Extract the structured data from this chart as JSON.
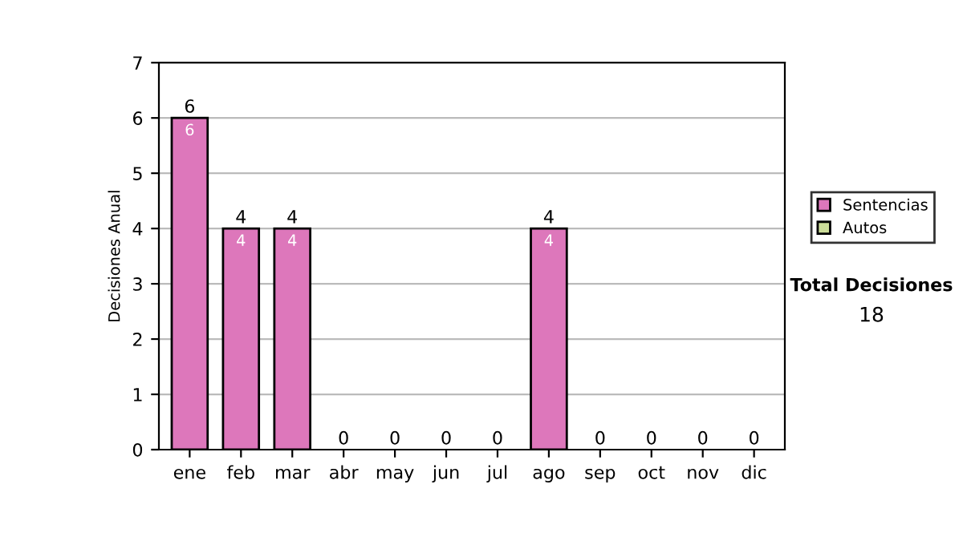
{
  "chart_data": {
    "type": "bar",
    "stacked": true,
    "ylabel": "Decisiones Anual",
    "categories": [
      "ene",
      "feb",
      "mar",
      "abr",
      "may",
      "jun",
      "jul",
      "ago",
      "sep",
      "oct",
      "nov",
      "dic"
    ],
    "series": [
      {
        "name": "Sentencias",
        "color": "#dd77bb",
        "values": [
          6,
          4,
          4,
          0,
          0,
          0,
          0,
          4,
          0,
          0,
          0,
          0
        ],
        "value_labels": [
          "6",
          "4",
          "4",
          null,
          null,
          null,
          null,
          "4",
          null,
          null,
          null,
          null
        ]
      },
      {
        "name": "Autos",
        "color": "#ccdd99",
        "values": [
          0,
          0,
          0,
          0,
          0,
          0,
          0,
          0,
          0,
          0,
          0,
          0
        ]
      }
    ],
    "totals": [
      "6",
      "4",
      "4",
      "0",
      "0",
      "0",
      "0",
      "4",
      "0",
      "0",
      "0",
      "0"
    ],
    "ylim": [
      0,
      7
    ],
    "yticks": [
      0,
      1,
      2,
      3,
      4,
      5,
      6,
      7
    ],
    "grid": "y",
    "legend": "right",
    "annotations": [
      "Total Decisiones",
      "18"
    ]
  }
}
